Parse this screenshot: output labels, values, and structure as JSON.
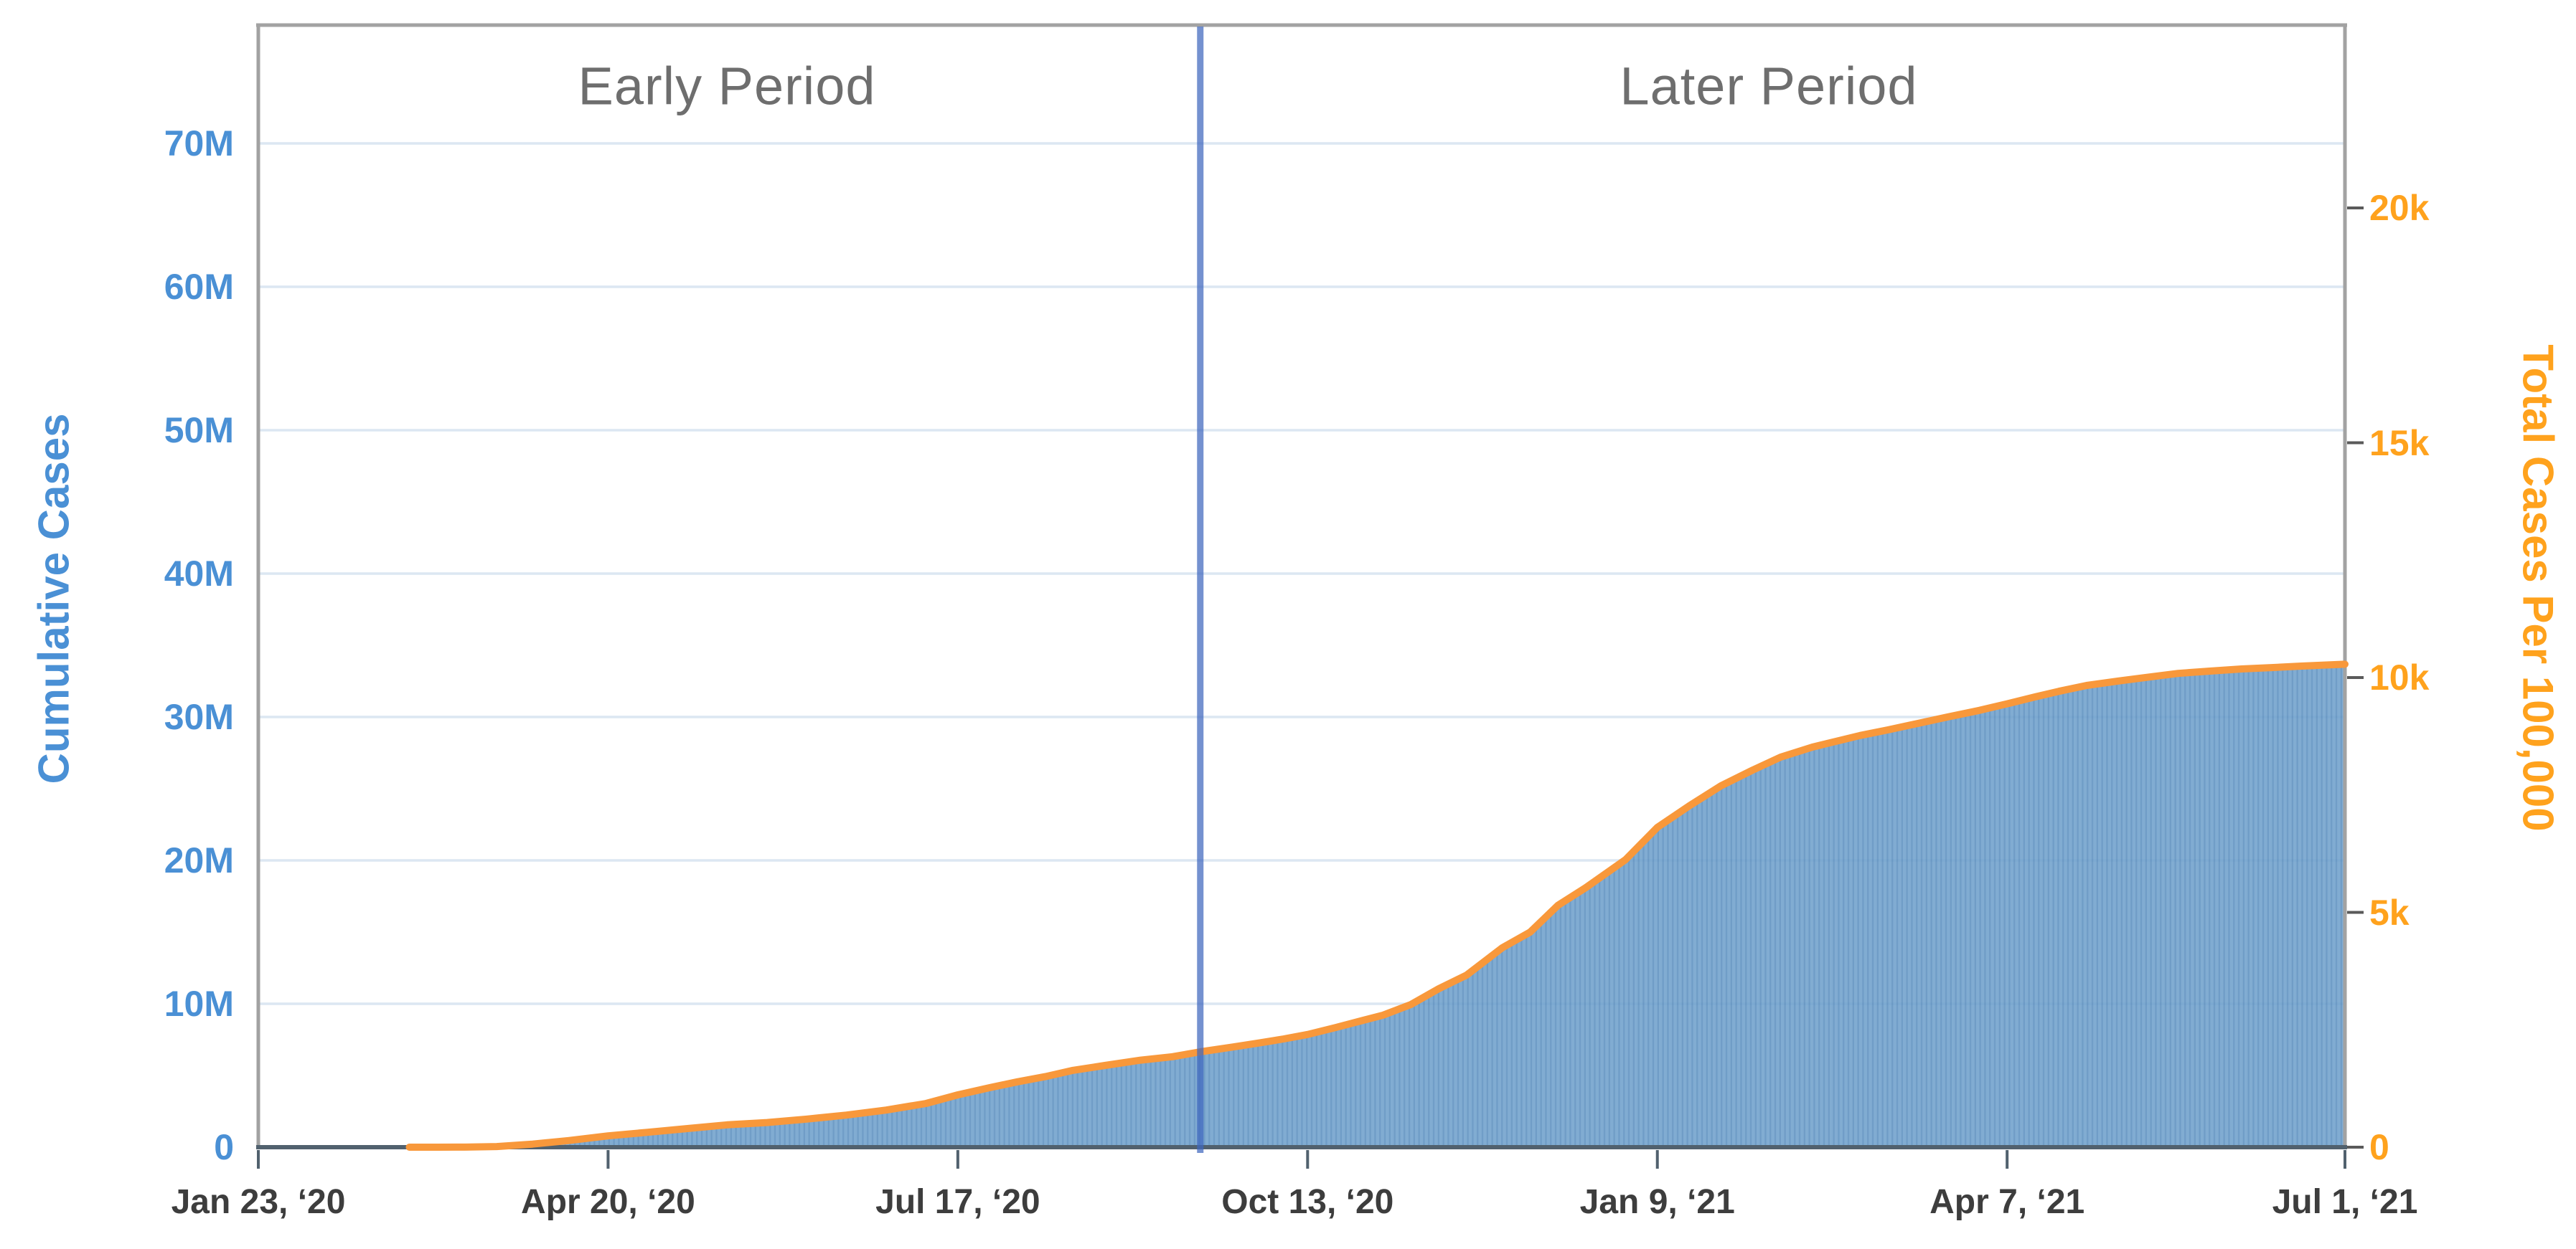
{
  "chart_data": {
    "type": "area",
    "title": "",
    "annotations": {
      "early_label": "Early Period",
      "later_label": "Later Period",
      "divider_day": 237
    },
    "x_axis": {
      "total_days": 525,
      "ticks": [
        {
          "day": 0,
          "label": "Jan 23, ‘20"
        },
        {
          "day": 88,
          "label": "Apr 20, ‘20"
        },
        {
          "day": 176,
          "label": "Jul 17, ‘20"
        },
        {
          "day": 264,
          "label": "Oct 13, ‘20"
        },
        {
          "day": 352,
          "label": "Jan 9, ‘21"
        },
        {
          "day": 440,
          "label": "Apr 7, ‘21"
        },
        {
          "day": 525,
          "label": "Jul 1, ‘21"
        }
      ]
    },
    "left_axis": {
      "title": "Cumulative Cases",
      "unit": "millions",
      "ylim": [
        0,
        78
      ],
      "ticks": [
        {
          "value": 70,
          "label": "70M"
        },
        {
          "value": 60,
          "label": "60M"
        },
        {
          "value": 50,
          "label": "50M"
        },
        {
          "value": 40,
          "label": "40M"
        },
        {
          "value": 30,
          "label": "30M"
        },
        {
          "value": 20,
          "label": "20M"
        },
        {
          "value": 10,
          "label": "10M"
        },
        {
          "value": 0,
          "label": "0"
        }
      ]
    },
    "right_axis": {
      "title": "Total Cases Per 100,000",
      "unit": "cases per 100,000",
      "ylim": [
        0,
        23900
      ],
      "ticks": [
        {
          "value": 20000,
          "label": "20k"
        },
        {
          "value": 15000,
          "label": "15k"
        },
        {
          "value": 10000,
          "label": "10k"
        },
        {
          "value": 5000,
          "label": "5k"
        },
        {
          "value": 0,
          "label": "0"
        }
      ]
    },
    "series": [
      {
        "name": "Cumulative Cases",
        "x_days": [
          38,
          45,
          52,
          60,
          69,
          78,
          88,
          98,
          108,
          118,
          128,
          138,
          148,
          158,
          168,
          176,
          184,
          191,
          198,
          205,
          213,
          222,
          230,
          237,
          245,
          252,
          258,
          264,
          271,
          278,
          283,
          290,
          297,
          304,
          313,
          320,
          327,
          334,
          344,
          352,
          360,
          368,
          376,
          383,
          391,
          403,
          410,
          417,
          425,
          433,
          440,
          447,
          453,
          460,
          468,
          475,
          483,
          491,
          499,
          507,
          514,
          525
        ],
        "y_millions": [
          0.001,
          0.002,
          0.004,
          0.044,
          0.215,
          0.46,
          0.79,
          1.04,
          1.3,
          1.56,
          1.72,
          1.96,
          2.24,
          2.59,
          3.05,
          3.65,
          4.15,
          4.56,
          4.92,
          5.36,
          5.7,
          6.07,
          6.31,
          6.65,
          6.98,
          7.28,
          7.55,
          7.86,
          8.34,
          8.85,
          9.21,
          9.95,
          11.05,
          12.0,
          13.91,
          15.0,
          16.87,
          18.1,
          20.05,
          22.3,
          23.8,
          25.2,
          26.3,
          27.2,
          27.9,
          28.71,
          29.1,
          29.52,
          30.0,
          30.46,
          30.92,
          31.4,
          31.79,
          32.2,
          32.51,
          32.76,
          33.04,
          33.2,
          33.35,
          33.45,
          33.55,
          33.68
        ]
      }
    ],
    "grid": "horizontal",
    "legend": "none",
    "colors": {
      "area_fill": "#6FA0CC",
      "area_stripe": "#5C8FBF",
      "line": "#F8983B",
      "grid": "#DCE7F2",
      "divider": "#3F66BE",
      "frame": "#A2A2A2",
      "axis_line": "#51616E",
      "tick_mark": "#5A5A5A",
      "left_axis_text": "#4A90D5",
      "right_axis_text": "#FFA21D",
      "x_axis_text": "#3D3D3D",
      "period_text": "#6E6E6E"
    }
  }
}
